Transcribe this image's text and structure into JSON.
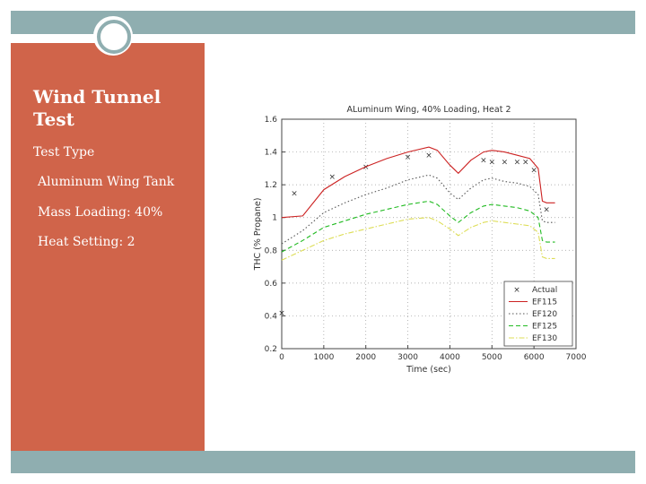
{
  "slide": {
    "title": "Wind Tunnel Test",
    "lines": [
      "Test Type",
      "Aluminum Wing Tank",
      "Mass Loading: 40%",
      "Heat Setting: 2"
    ],
    "colors": {
      "panel": "#d0644a",
      "bars": "#8faeb0"
    }
  },
  "chart_data": {
    "type": "line",
    "title": "ALuminum Wing, 40% Loading, Heat 2",
    "xlabel": "Time (sec)",
    "ylabel": "THC (% Propane)",
    "xlim": [
      0,
      7000
    ],
    "ylim": [
      0.2,
      1.6
    ],
    "xticks": [
      "0",
      "1000",
      "2000",
      "3000",
      "4000",
      "5000",
      "6000",
      "7000"
    ],
    "yticks": [
      "0.2",
      "0.4",
      "0.6",
      "0.8",
      "1",
      "1.2",
      "1.4",
      "1.6"
    ],
    "grid": true,
    "legend_position": "bottom-right",
    "series": [
      {
        "name": "Actual",
        "style": "markers",
        "color": "#333333",
        "x": [
          0,
          300,
          1200,
          2000,
          3000,
          3500,
          4800,
          5000,
          5300,
          5600,
          5800,
          6000,
          6300
        ],
        "y": [
          0.42,
          1.15,
          1.25,
          1.31,
          1.37,
          1.38,
          1.35,
          1.34,
          1.34,
          1.34,
          1.34,
          1.29,
          1.05
        ]
      },
      {
        "name": "EF115",
        "style": "solid",
        "color": "#cc2222",
        "x": [
          0,
          500,
          1000,
          1500,
          2000,
          2500,
          3000,
          3500,
          3700,
          4000,
          4200,
          4500,
          4800,
          5000,
          5300,
          5600,
          5900,
          6100,
          6200,
          6300,
          6500
        ],
        "y": [
          1.0,
          1.01,
          1.17,
          1.25,
          1.31,
          1.36,
          1.4,
          1.43,
          1.41,
          1.32,
          1.27,
          1.35,
          1.4,
          1.41,
          1.4,
          1.38,
          1.36,
          1.3,
          1.1,
          1.09,
          1.09
        ]
      },
      {
        "name": "EF120",
        "style": "dotted",
        "color": "#555555",
        "x": [
          0,
          500,
          1000,
          1500,
          2000,
          2500,
          3000,
          3500,
          3700,
          4000,
          4200,
          4500,
          4800,
          5000,
          5300,
          5600,
          5900,
          6100,
          6200,
          6300,
          6500
        ],
        "y": [
          0.84,
          0.92,
          1.03,
          1.09,
          1.14,
          1.18,
          1.23,
          1.26,
          1.24,
          1.15,
          1.11,
          1.18,
          1.23,
          1.24,
          1.22,
          1.21,
          1.19,
          1.14,
          0.98,
          0.97,
          0.97
        ]
      },
      {
        "name": "EF125",
        "style": "dashed",
        "color": "#22bb22",
        "x": [
          0,
          500,
          1000,
          1500,
          2000,
          2500,
          3000,
          3500,
          3700,
          4000,
          4200,
          4500,
          4800,
          5000,
          5300,
          5600,
          5900,
          6100,
          6200,
          6300,
          6500
        ],
        "y": [
          0.79,
          0.86,
          0.94,
          0.98,
          1.02,
          1.05,
          1.08,
          1.1,
          1.08,
          1.01,
          0.97,
          1.03,
          1.07,
          1.08,
          1.07,
          1.06,
          1.04,
          1.0,
          0.86,
          0.85,
          0.85
        ]
      },
      {
        "name": "EF130",
        "style": "dashdot",
        "color": "#dddd55",
        "x": [
          0,
          500,
          1000,
          1500,
          2000,
          2500,
          3000,
          3500,
          3700,
          4000,
          4200,
          4500,
          4800,
          5000,
          5300,
          5600,
          5900,
          6100,
          6200,
          6300,
          6500
        ],
        "y": [
          0.74,
          0.8,
          0.86,
          0.9,
          0.93,
          0.96,
          0.99,
          1.0,
          0.98,
          0.93,
          0.89,
          0.94,
          0.97,
          0.98,
          0.97,
          0.96,
          0.95,
          0.91,
          0.76,
          0.75,
          0.75
        ]
      }
    ]
  }
}
